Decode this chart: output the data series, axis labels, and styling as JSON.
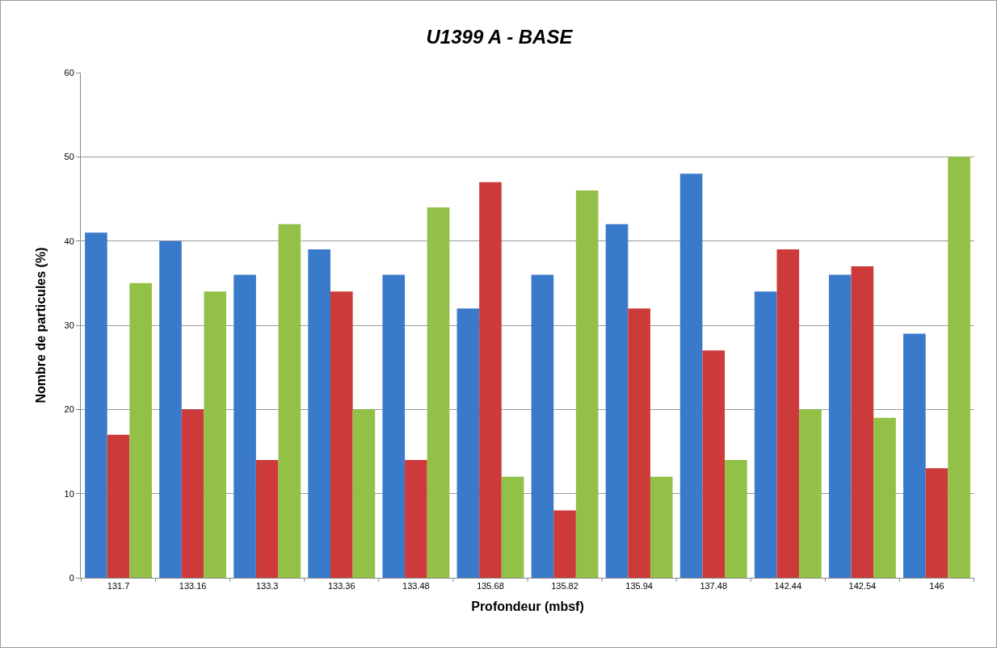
{
  "chart_data": {
    "type": "bar",
    "title": "U1399 A - BASE",
    "xlabel": "Profondeur (mbsf)",
    "ylabel": "Nombre de particules (%)",
    "categories": [
      "131.7",
      "133.16",
      "133.3",
      "133.36",
      "133.48",
      "135.68",
      "135.82",
      "135.94",
      "137.48",
      "142.44",
      "142.54",
      "146"
    ],
    "series": [
      {
        "color": "#3a7acb",
        "values": [
          41,
          40,
          36,
          39,
          36,
          32,
          36,
          42,
          48,
          34,
          36,
          29
        ]
      },
      {
        "color": "#cc3b3a",
        "values": [
          17,
          20,
          14,
          34,
          14,
          47,
          8,
          32,
          27,
          39,
          37,
          13
        ]
      },
      {
        "color": "#93c047",
        "values": [
          35,
          34,
          42,
          20,
          44,
          12,
          46,
          12,
          14,
          20,
          19,
          50
        ]
      }
    ],
    "ylim": [
      0,
      60
    ],
    "yticks": [
      0,
      10,
      20,
      30,
      40,
      50,
      60
    ],
    "grid": "y"
  }
}
